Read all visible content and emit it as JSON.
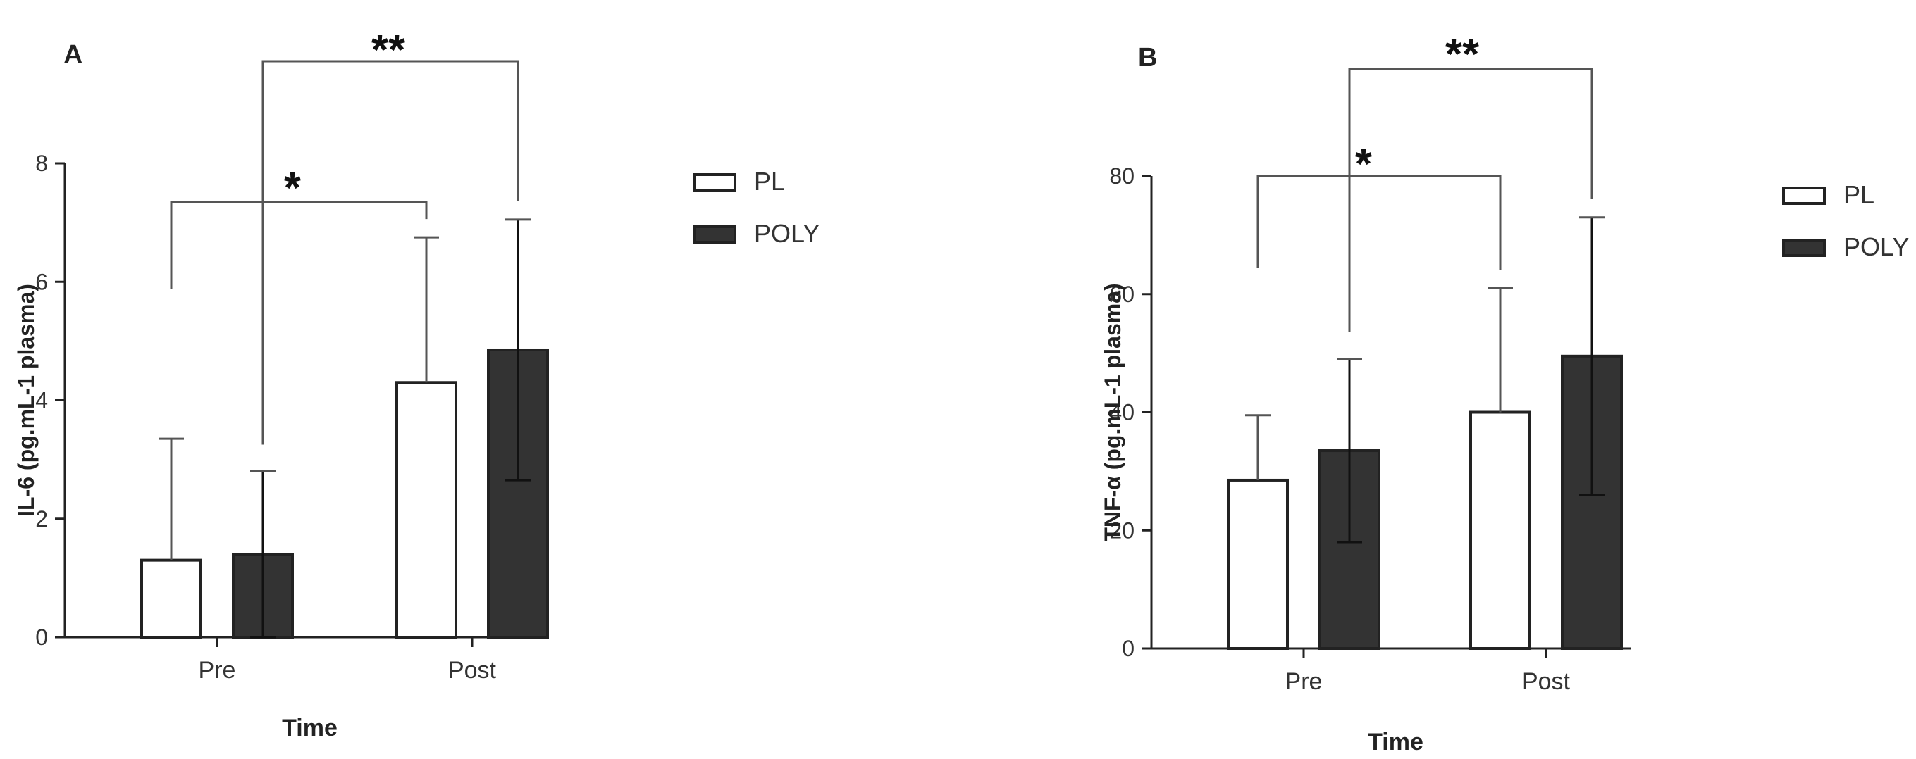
{
  "chart_data": [
    {
      "type": "bar",
      "panel": "A",
      "categories": [
        "Pre",
        "Post"
      ],
      "series": [
        {
          "name": "PL",
          "values": [
            1.3,
            4.3
          ],
          "errors": [
            2.05,
            2.45
          ]
        },
        {
          "name": "POLY",
          "values": [
            1.4,
            4.85
          ],
          "errors": [
            1.4,
            2.2
          ]
        }
      ],
      "xlabel": "Time",
      "ylabel": "IL-6 (pg.mL-1 plasma)",
      "ylim": [
        0,
        8
      ],
      "yticks": [
        0,
        2,
        4,
        6,
        8
      ],
      "legend_position": "right",
      "significance": [
        {
          "from": "Pre",
          "to": "Post",
          "label": "*"
        },
        {
          "from": "Pre",
          "to": "Post",
          "label": "**"
        }
      ]
    },
    {
      "type": "bar",
      "panel": "B",
      "categories": [
        "Pre",
        "Post"
      ],
      "series": [
        {
          "name": "PL",
          "values": [
            28.5,
            40
          ],
          "errors": [
            11,
            21
          ]
        },
        {
          "name": "POLY",
          "values": [
            33.5,
            49.5
          ],
          "errors": [
            15.5,
            23.5
          ]
        }
      ],
      "xlabel": "Time",
      "ylabel": "TNF-α (pg.mL-1 plasma)",
      "ylim": [
        0,
        80
      ],
      "yticks": [
        0,
        20,
        40,
        60,
        80
      ],
      "legend_position": "right",
      "significance": [
        {
          "from": "Pre",
          "to": "Post",
          "label": "*"
        },
        {
          "from": "Pre",
          "to": "Post",
          "label": "**"
        }
      ]
    }
  ],
  "colors": {
    "PL": "#ffffff",
    "POLY": "#333333",
    "axis": "#222222",
    "bracket": "#555555"
  }
}
